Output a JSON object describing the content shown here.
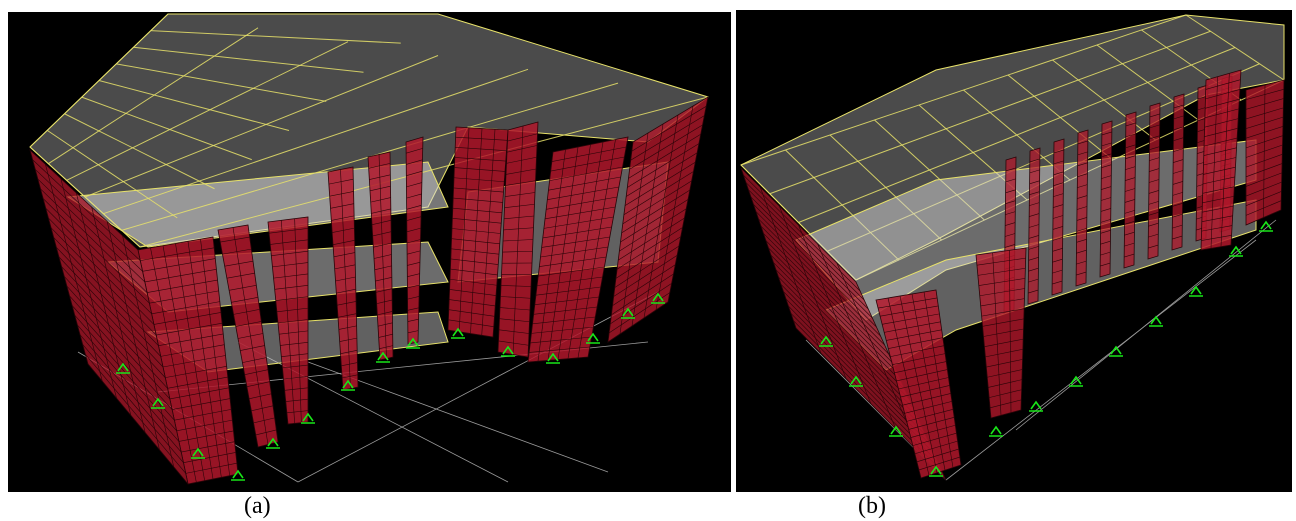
{
  "figure": {
    "panels": [
      {
        "caption": "(a)"
      },
      {
        "caption": "(b)"
      }
    ],
    "colors": {
      "background": "#000000",
      "wall": "#b2182b",
      "wall_mesh": "#2a0408",
      "slab": "#d8d8d8",
      "slab_gridline": "#e8e26a",
      "support": "#19e619",
      "ground_grid": "#9a9a9a"
    }
  }
}
